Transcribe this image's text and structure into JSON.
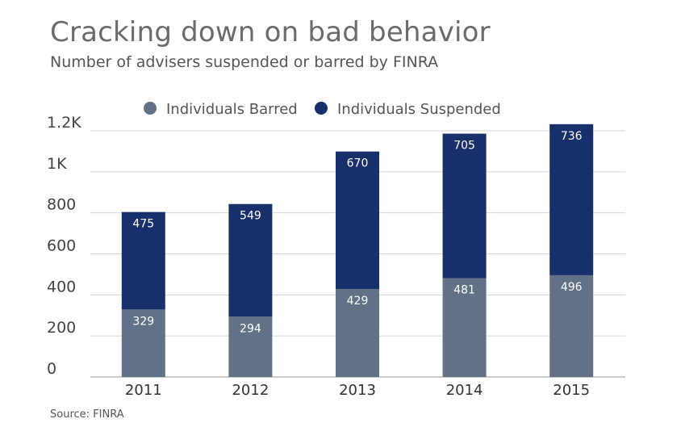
{
  "chart_data": {
    "type": "bar",
    "stacked": true,
    "title": "Cracking down on bad behavior",
    "subtitle": "Number of advisers suspended or barred by FINRA",
    "source": "Source: FINRA",
    "categories": [
      "2011",
      "2012",
      "2013",
      "2014",
      "2015"
    ],
    "series": [
      {
        "name": "Individuals Barred",
        "values": [
          329,
          294,
          429,
          481,
          496
        ],
        "color": "#627186"
      },
      {
        "name": "Individuals Suspended",
        "values": [
          475,
          549,
          670,
          705,
          736
        ],
        "color": "#17306b"
      }
    ],
    "ylim": [
      0,
      1200
    ],
    "yticks": [
      {
        "value": 0,
        "label": "0"
      },
      {
        "value": 200,
        "label": "200"
      },
      {
        "value": 400,
        "label": "400"
      },
      {
        "value": 600,
        "label": "600"
      },
      {
        "value": 800,
        "label": "800"
      },
      {
        "value": 1000,
        "label": "1K"
      },
      {
        "value": 1200,
        "label": "1.2K"
      }
    ],
    "grid": true,
    "legend": "top-center",
    "xlabel": "",
    "ylabel": ""
  }
}
